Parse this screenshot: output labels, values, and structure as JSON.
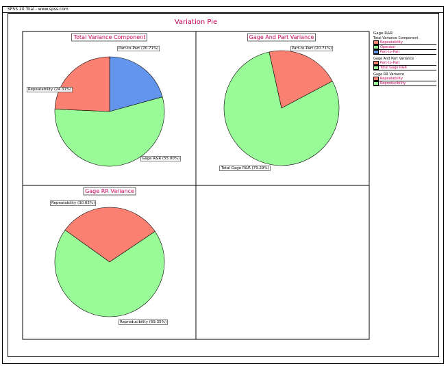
{
  "header": {
    "text": "SPSS 20 Trial - www.spss.com"
  },
  "title": "Variation Pie",
  "colors": {
    "repeatability": "#fa8072",
    "reproducibility": "#98fb98",
    "part_to_part": "#6495ed",
    "title": "#c8005a"
  },
  "chart_data": [
    {
      "type": "pie",
      "title": "Total Variance Component",
      "slices": [
        {
          "label": "Part-to-Part (20.71%)",
          "value": 20.71,
          "color": "#6495ed"
        },
        {
          "label": "Gage R&R (55.00%)",
          "value": 55.0,
          "color": "#98fb98"
        },
        {
          "label": "Repeatability (24.31%)",
          "value": 24.31,
          "color": "#fa8072"
        }
      ]
    },
    {
      "type": "pie",
      "title": "Gage And Part Variance",
      "slices": [
        {
          "label": "Part-to-Part (20.71%)",
          "value": 20.71,
          "color": "#fa8072"
        },
        {
          "label": "Total Gage R&R (79.29%)",
          "value": 79.29,
          "color": "#98fb98"
        }
      ]
    },
    {
      "type": "pie",
      "title": "Gage RR Variance",
      "slices": [
        {
          "label": "Repeatability (30.65%)",
          "value": 30.65,
          "color": "#fa8072"
        },
        {
          "label": "Reproducibility (69.35%)",
          "value": 69.35,
          "color": "#98fb98"
        }
      ]
    }
  ],
  "legend": {
    "title": "Gage R&R",
    "groups": [
      {
        "title": "Total Variance Component",
        "items": [
          {
            "label": "Repeatability",
            "color": "#fa8072"
          },
          {
            "label": "Operator",
            "color": "#98fb98"
          },
          {
            "label": "Part-to-Part",
            "color": "#6495ed"
          }
        ]
      },
      {
        "title": "Gage And Part Variance",
        "items": [
          {
            "label": "Part-to-Part",
            "color": "#fa8072"
          },
          {
            "label": "Total Gage R&R",
            "color": "#98fb98"
          }
        ]
      },
      {
        "title": "Gage RR Variance",
        "items": [
          {
            "label": "Repeatability",
            "color": "#fa8072"
          },
          {
            "label": "Reproducibility",
            "color": "#98fb98"
          }
        ]
      }
    ]
  }
}
